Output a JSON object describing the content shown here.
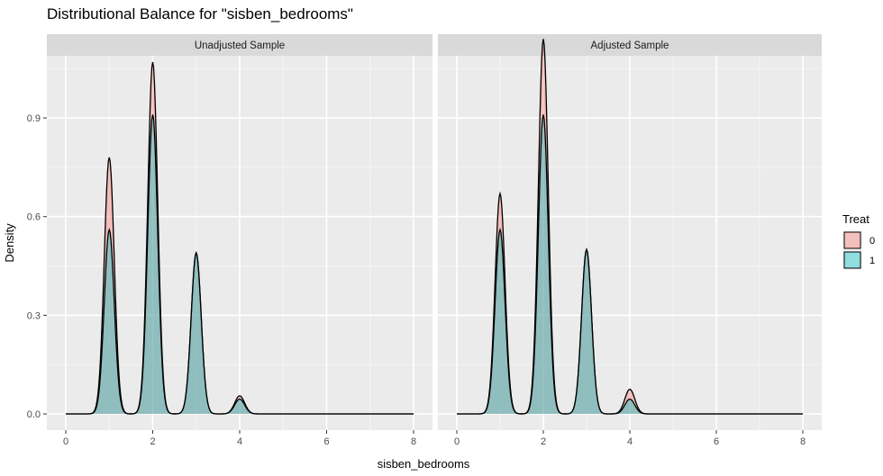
{
  "chart_data": {
    "type": "area",
    "title": "Distributional Balance for \"sisben_bedrooms\"",
    "xlabel": "sisben_bedrooms",
    "ylabel": "Density",
    "xlim": [
      0,
      8
    ],
    "ylim": [
      0,
      1.13
    ],
    "x_ticks": [
      "0",
      "2",
      "4",
      "6",
      "8"
    ],
    "y_ticks": [
      "0.0",
      "0.3",
      "0.6",
      "0.9"
    ],
    "grid": true,
    "legend": {
      "title": "Treat",
      "position": "right",
      "entries": [
        {
          "label": "0",
          "color": "#F8766D"
        },
        {
          "label": "1",
          "color": "#00BFC4"
        }
      ]
    },
    "facets": [
      {
        "strip": "Unadjusted Sample",
        "series": [
          {
            "name": "0",
            "peaks": [
              {
                "x": 1,
                "y": 0.78
              },
              {
                "x": 2,
                "y": 1.07
              },
              {
                "x": 3,
                "y": 0.49
              },
              {
                "x": 4,
                "y": 0.055
              }
            ]
          },
          {
            "name": "1",
            "peaks": [
              {
                "x": 1,
                "y": 0.56
              },
              {
                "x": 2,
                "y": 0.91
              },
              {
                "x": 3,
                "y": 0.49
              },
              {
                "x": 4,
                "y": 0.045
              }
            ]
          }
        ]
      },
      {
        "strip": "Adjusted Sample",
        "series": [
          {
            "name": "0",
            "peaks": [
              {
                "x": 1,
                "y": 0.67
              },
              {
                "x": 2,
                "y": 1.14
              },
              {
                "x": 3,
                "y": 0.5
              },
              {
                "x": 4,
                "y": 0.075
              }
            ]
          },
          {
            "name": "1",
            "peaks": [
              {
                "x": 1,
                "y": 0.56
              },
              {
                "x": 2,
                "y": 0.91
              },
              {
                "x": 3,
                "y": 0.5
              },
              {
                "x": 4,
                "y": 0.045
              }
            ]
          }
        ]
      }
    ]
  }
}
